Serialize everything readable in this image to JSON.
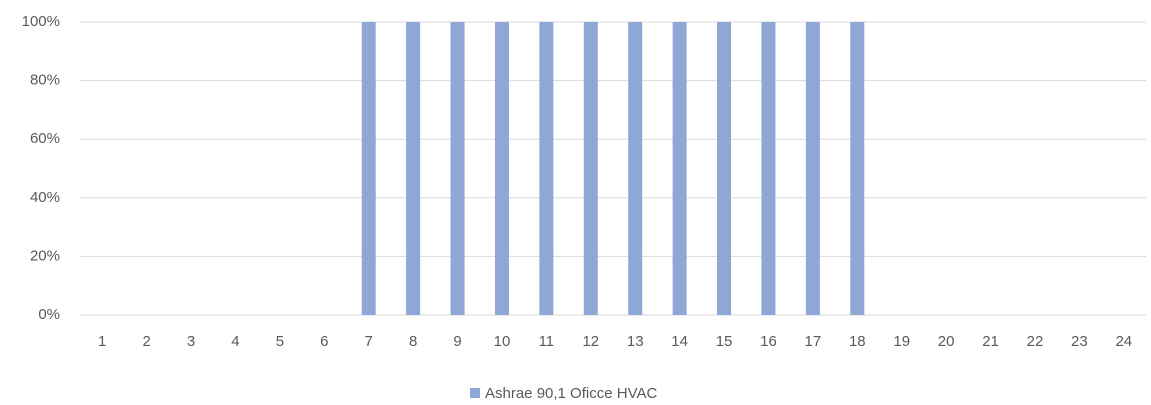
{
  "chart_data": {
    "type": "bar",
    "categories": [
      "1",
      "2",
      "3",
      "4",
      "5",
      "6",
      "7",
      "8",
      "9",
      "10",
      "11",
      "12",
      "13",
      "14",
      "15",
      "16",
      "17",
      "18",
      "19",
      "20",
      "21",
      "22",
      "23",
      "24"
    ],
    "series": [
      {
        "name": "Ashrae 90,1 Oficce HVAC",
        "color": "#8fa7d6",
        "values": [
          0,
          0,
          0,
          0,
          0,
          0,
          100,
          100,
          100,
          100,
          100,
          100,
          100,
          100,
          100,
          100,
          100,
          100,
          0,
          0,
          0,
          0,
          0,
          0
        ]
      }
    ],
    "ylim": [
      0,
      100
    ],
    "yticks": [
      {
        "value": 0,
        "label": "0%"
      },
      {
        "value": 20,
        "label": "20%"
      },
      {
        "value": 40,
        "label": "40%"
      },
      {
        "value": 60,
        "label": "60%"
      },
      {
        "value": 80,
        "label": "80%"
      },
      {
        "value": 100,
        "label": "100%"
      }
    ],
    "grid": true,
    "legend": "bottom"
  }
}
